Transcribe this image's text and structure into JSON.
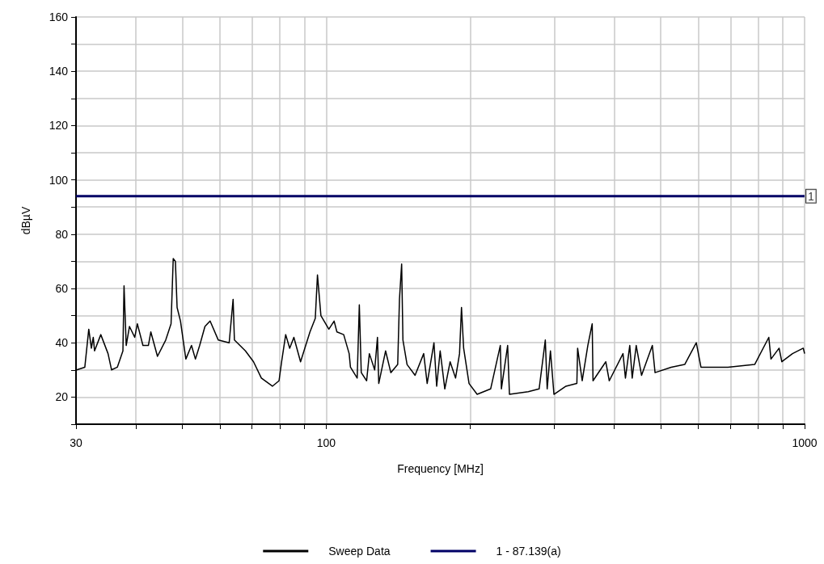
{
  "chart_data": {
    "type": "line",
    "xlabel": "Frequency [MHz]",
    "ylabel": "dBµV",
    "log": "x",
    "grid": true,
    "legend": "bottom",
    "marker": "none",
    "line_style": "solid",
    "xlim": [
      30,
      1000
    ],
    "xticks": [
      30,
      {
        "value": 40,
        "label": null
      },
      {
        "value": 50,
        "label": null
      },
      {
        "value": 60,
        "label": null
      },
      {
        "value": 70,
        "label": null
      },
      {
        "value": 80,
        "label": null
      },
      {
        "value": 90,
        "label": null
      },
      100,
      {
        "value": 200,
        "label": null
      },
      {
        "value": 300,
        "label": null
      },
      {
        "value": 400,
        "label": null
      },
      {
        "value": 500,
        "label": null
      },
      {
        "value": 600,
        "label": null
      },
      {
        "value": 700,
        "label": null
      },
      {
        "value": 800,
        "label": null
      },
      {
        "value": 900,
        "label": null
      },
      1000
    ],
    "ylim": [
      10,
      160
    ],
    "yticks": [
      {
        "value": 10,
        "label": null
      },
      20,
      {
        "value": 30,
        "label": null
      },
      40,
      {
        "value": 50,
        "label": null
      },
      60,
      {
        "value": 70,
        "label": null
      },
      80,
      {
        "value": 90,
        "label": null
      },
      100,
      {
        "value": 110,
        "label": null
      },
      120,
      {
        "value": 130,
        "label": null
      },
      140,
      {
        "value": 150,
        "label": null
      },
      160
    ],
    "series": [
      {
        "name": "Sweep Data",
        "color": "#000000",
        "x": [
          30,
          30.1,
          31.3,
          31.9,
          32.3,
          32.6,
          32.8,
          33.8,
          35.0,
          35.6,
          36.6,
          37.6,
          37.8,
          38.2,
          38.8,
          39.8,
          40.3,
          41.4,
          42.5,
          43.0,
          44.4,
          46.2,
          47.4,
          47.9,
          48.4,
          48.8,
          49.6,
          50.9,
          52.3,
          53.3,
          54.4,
          55.8,
          57.2,
          59.5,
          62.7,
          63.9,
          64.3,
          67.8,
          70.5,
          73.2,
          77.2,
          79.7,
          80.7,
          82.3,
          83.9,
          85.6,
          88.4,
          92.5,
          94.9,
          95.9,
          97.5,
          101.3,
          103.9,
          105.3,
          108.8,
          111.7,
          112.4,
          116.1,
          117.3,
          118.4,
          121.5,
          123.1,
          126.3,
          128.0,
          128.8,
          133.1,
          136.5,
          141.1,
          142.3,
          143.8,
          144.7,
          147.6,
          153.4,
          159.9,
          162.6,
          168.0,
          170.2,
          173.1,
          177.0,
          181.6,
          186.4,
          190.0,
          191.8,
          193.8,
          198.9,
          206.8,
          220.7,
          231.2,
          232.4,
          239.5,
          241.6,
          264.5,
          278.7,
          287.1,
          289.7,
          294.3,
          299.3,
          317.1,
          334.2,
          335.4,
          342.9,
          352.3,
          359.8,
          361.2,
          384.1,
          390.6,
          417.3,
          422.2,
          431.1,
          436.2,
          444.7,
          456.3,
          480.6,
          486.9,
          526.3,
          561.6,
          593.8,
          607.3,
          691.3,
          786.5,
          841.8,
          850.6,
          884.5,
          896.2,
          943.6,
          993.6,
          1000
        ],
        "values": [
          30,
          30,
          31,
          45,
          38,
          42,
          37,
          43,
          36,
          30,
          31,
          37,
          61,
          39,
          46,
          42,
          47,
          39,
          39,
          44,
          35,
          41,
          47,
          71,
          70,
          53,
          48,
          34,
          39,
          34,
          39,
          46,
          48,
          41,
          40,
          56,
          41,
          37,
          33,
          27,
          24,
          26,
          33,
          43,
          38,
          42,
          33,
          44,
          49,
          65,
          50,
          45,
          48,
          44,
          43,
          36,
          31,
          27,
          54,
          29,
          26,
          36,
          30,
          42,
          25,
          37,
          29,
          32,
          56,
          69,
          41,
          32,
          28,
          36,
          25,
          40,
          24,
          37,
          23,
          33,
          27,
          36,
          53,
          38,
          25,
          21,
          23,
          39,
          23,
          39,
          21,
          22,
          23,
          41,
          23,
          37,
          21,
          24,
          25,
          38,
          26,
          39,
          47,
          26,
          33,
          26,
          36,
          27,
          39,
          27,
          39,
          28,
          39,
          29,
          31,
          32,
          40,
          31,
          31,
          32,
          42,
          34,
          38,
          33,
          36,
          38,
          36
        ]
      },
      {
        "name": "1 - 87.139(a)",
        "color": "#000066",
        "x": [
          30,
          1000
        ],
        "values": [
          94,
          94
        ]
      }
    ],
    "annotations": [
      {
        "text": "1",
        "x": 1000,
        "y": 94
      }
    ]
  }
}
